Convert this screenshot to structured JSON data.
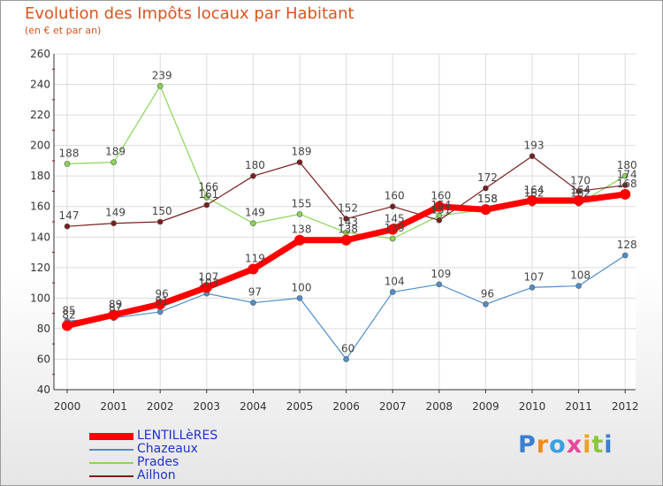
{
  "header": {
    "title": "Evolution des Impôts locaux par Habitant",
    "subtitle": "(en € et par an)"
  },
  "brand": {
    "logo_text": "Proxiti"
  },
  "colors": {
    "title": "#d9541e",
    "axis": "#333333",
    "grid": "#dcdcdc",
    "tick_marks": "#cc0000",
    "legend_text": "#2233c8"
  },
  "chart_data": {
    "type": "line",
    "title": "Evolution des Impôts locaux par Habitant",
    "subtitle": "(en € et par an)",
    "xlabel": "",
    "ylabel": "",
    "categories": [
      "2000",
      "2001",
      "2002",
      "2003",
      "2004",
      "2005",
      "2006",
      "2007",
      "2008",
      "2009",
      "2010",
      "2011",
      "2012"
    ],
    "ylim": [
      40,
      260
    ],
    "yticks": [
      40,
      60,
      80,
      100,
      120,
      140,
      160,
      180,
      200,
      220,
      240,
      260
    ],
    "grid": true,
    "legend_position": "bottom-left",
    "series": [
      {
        "name": "LENTILLèRES",
        "color": "#ff0000",
        "values": [
          82,
          89,
          96,
          107,
          119,
          138,
          138,
          145,
          160,
          158,
          164,
          164,
          168
        ]
      },
      {
        "name": "Chazeaux",
        "color": "#4f8ec9",
        "values": [
          85,
          87,
          91,
          103,
          97,
          100,
          60,
          104,
          109,
          96,
          107,
          108,
          128
        ]
      },
      {
        "name": "Prades",
        "color": "#88d655",
        "values": [
          188,
          189,
          239,
          166,
          149,
          155,
          143,
          139,
          154,
          158,
          162,
          162,
          180
        ]
      },
      {
        "name": "Ailhon",
        "color": "#7a1e1e",
        "values": [
          147,
          149,
          150,
          161,
          180,
          189,
          152,
          160,
          151,
          172,
          193,
          170,
          174
        ]
      }
    ]
  }
}
